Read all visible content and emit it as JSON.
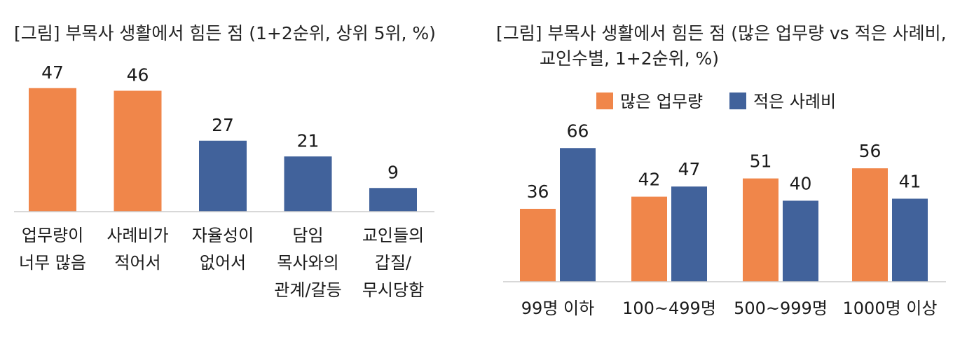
{
  "colors": {
    "orange": "#F0864A",
    "blue": "#41629B",
    "axis": "#cccccc"
  },
  "chart_data": [
    {
      "type": "bar",
      "title": "[그림] 부목사 생활에서 힘든 점 (1+2순위, 상위 5위, %)",
      "categories": [
        [
          "업무량이",
          "너무 많음"
        ],
        [
          "사례비가",
          "적어서"
        ],
        [
          "자율성이",
          "없어서"
        ],
        [
          "담임",
          "목사와의",
          "관계/갈등"
        ],
        [
          "교인들의",
          "갑질/",
          "무시당함"
        ]
      ],
      "values": [
        47,
        46,
        27,
        21,
        9
      ],
      "bar_colors": [
        "#F0864A",
        "#F0864A",
        "#41629B",
        "#41629B",
        "#41629B"
      ],
      "ylim": [
        0,
        50
      ],
      "grid": false,
      "legend": null
    },
    {
      "type": "bar",
      "title_lines": [
        "[그림] 부목사 생활에서 힘든 점 (많은 업무량 vs 적은 사례비,",
        "교인수별, 1+2순위, %)"
      ],
      "categories": [
        "99명 이하",
        "100~499명",
        "500~999명",
        "1000명 이상"
      ],
      "series": [
        {
          "name": "많은 업무량",
          "values": [
            36,
            42,
            51,
            56
          ],
          "color": "#F0864A"
        },
        {
          "name": "적은 사례비",
          "values": [
            66,
            47,
            40,
            41
          ],
          "color": "#41629B"
        }
      ],
      "ylim": [
        0,
        70
      ],
      "grid": false,
      "legend": "top-center"
    }
  ]
}
